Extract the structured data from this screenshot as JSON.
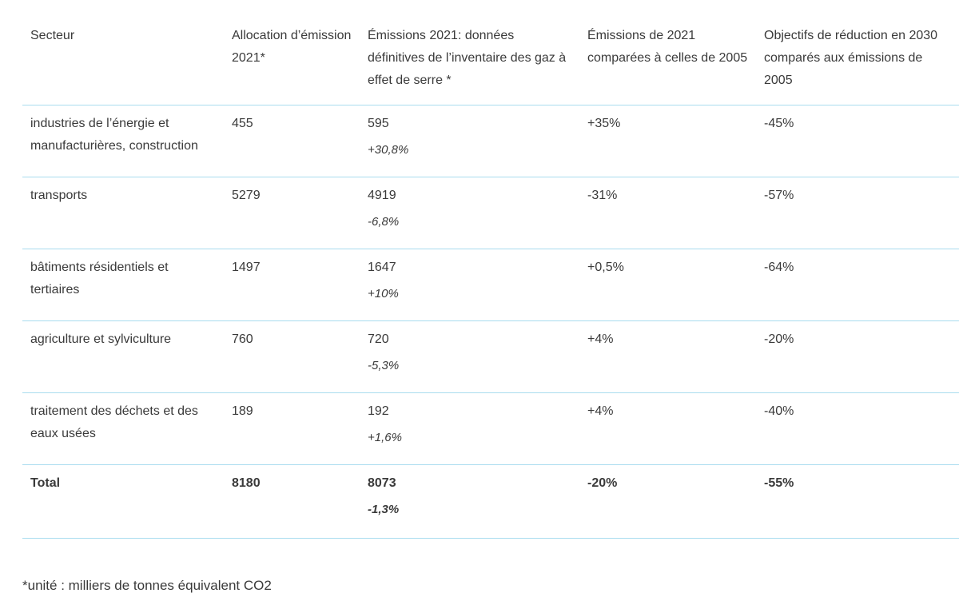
{
  "table": {
    "headers": [
      "Secteur",
      "Allocation d’émission 2021*",
      "Émissions 2021: données définitives de l’inventaire des gaz à effet de serre *",
      "Émissions de 2021 comparées à celles de 2005",
      "Objectifs de réduction en 2030 comparés aux émissions de 2005"
    ],
    "rows": [
      {
        "sector": "industries de l’énergie et manufacturières, construction",
        "allocation": "455",
        "emissions": "595",
        "change": "+30,8%",
        "vs2005": "+35%",
        "target2030": "-45%"
      },
      {
        "sector": "transports",
        "allocation": "5279",
        "emissions": "4919",
        "change": "-6,8%",
        "vs2005": "-31%",
        "target2030": "-57%"
      },
      {
        "sector": "bâtiments résidentiels et tertiaires",
        "allocation": "1497",
        "emissions": "1647",
        "change": "+10%",
        "vs2005": "+0,5%",
        "target2030": "-64%"
      },
      {
        "sector": "agriculture et sylviculture",
        "allocation": "760",
        "emissions": "720",
        "change": "-5,3%",
        "vs2005": "+4%",
        "target2030": "-20%"
      },
      {
        "sector": "traitement des déchets et des eaux usées",
        "allocation": "189",
        "emissions": "192",
        "change": "+1,6%",
        "vs2005": "+4%",
        "target2030": "-40%"
      }
    ],
    "total": {
      "sector": "Total",
      "allocation": "8180",
      "emissions": "8073",
      "change": "-1,3%",
      "vs2005": "-20%",
      "target2030": "-55%"
    }
  },
  "footnote": "*unité : milliers de tonnes équivalent CO2",
  "colors": {
    "text": "#3a3a3a",
    "rule": "#a9dcef",
    "background": "#ffffff"
  }
}
